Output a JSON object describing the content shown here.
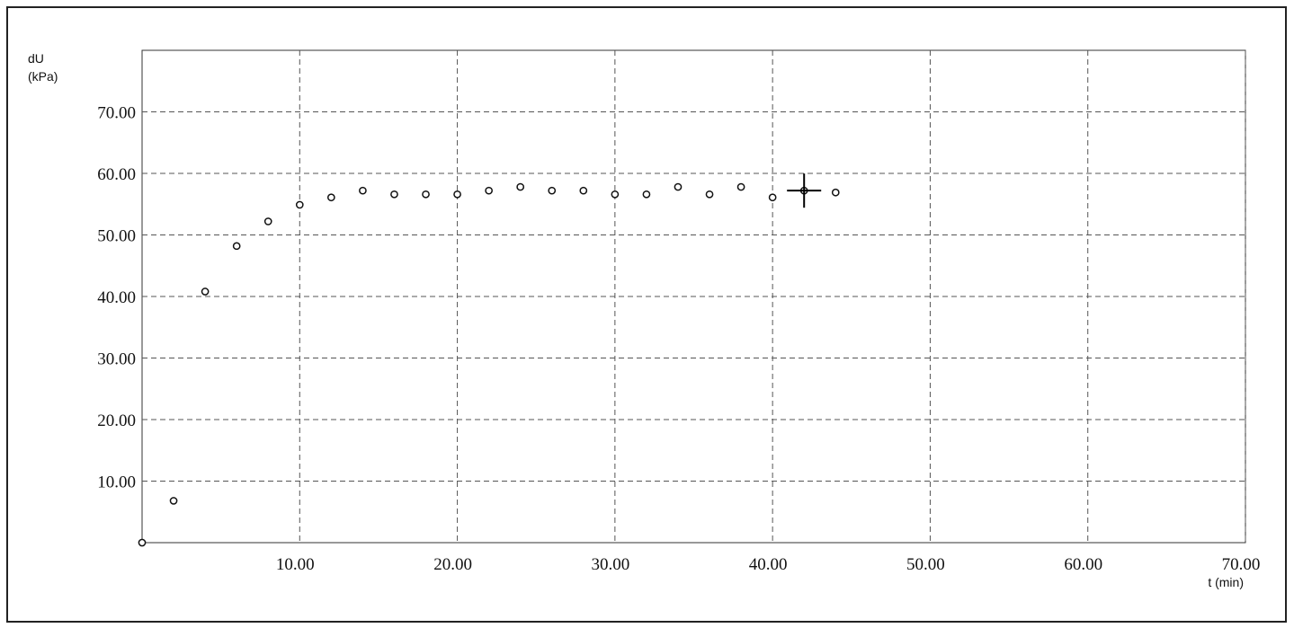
{
  "chart_data": {
    "type": "scatter",
    "title": "",
    "y_label_line1": "dU",
    "y_label_line2": "(kPa)",
    "xlabel": "t (min)",
    "xlim": [
      0,
      70
    ],
    "ylim": [
      0,
      80
    ],
    "x_ticks": [
      10,
      20,
      30,
      40,
      50,
      60,
      70
    ],
    "y_ticks": [
      10,
      20,
      30,
      40,
      50,
      60,
      70
    ],
    "x_tick_labels": [
      "10.00",
      "20.00",
      "30.00",
      "40.00",
      "50.00",
      "60.00",
      "70.00"
    ],
    "y_tick_labels": [
      "10.00",
      "20.00",
      "30.00",
      "40.00",
      "50.00",
      "60.00",
      "70.00"
    ],
    "grid": true,
    "grid_style": "dashed",
    "series": [
      {
        "marker": "open-circle",
        "color": "#111111",
        "x": [
          0,
          2,
          4,
          6,
          8,
          10,
          12,
          14,
          16,
          18,
          20,
          22,
          24,
          26,
          28,
          30,
          32,
          34,
          36,
          38,
          40,
          42,
          44
        ],
        "y": [
          0,
          6.8,
          40.8,
          48.2,
          52.2,
          54.9,
          56.1,
          57.2,
          56.6,
          56.6,
          56.6,
          57.2,
          57.8,
          57.2,
          57.2,
          56.6,
          56.6,
          57.8,
          56.6,
          57.8,
          56.1,
          57.2,
          56.9
        ]
      }
    ],
    "cursor": {
      "x": 42,
      "y": 57.2
    }
  }
}
